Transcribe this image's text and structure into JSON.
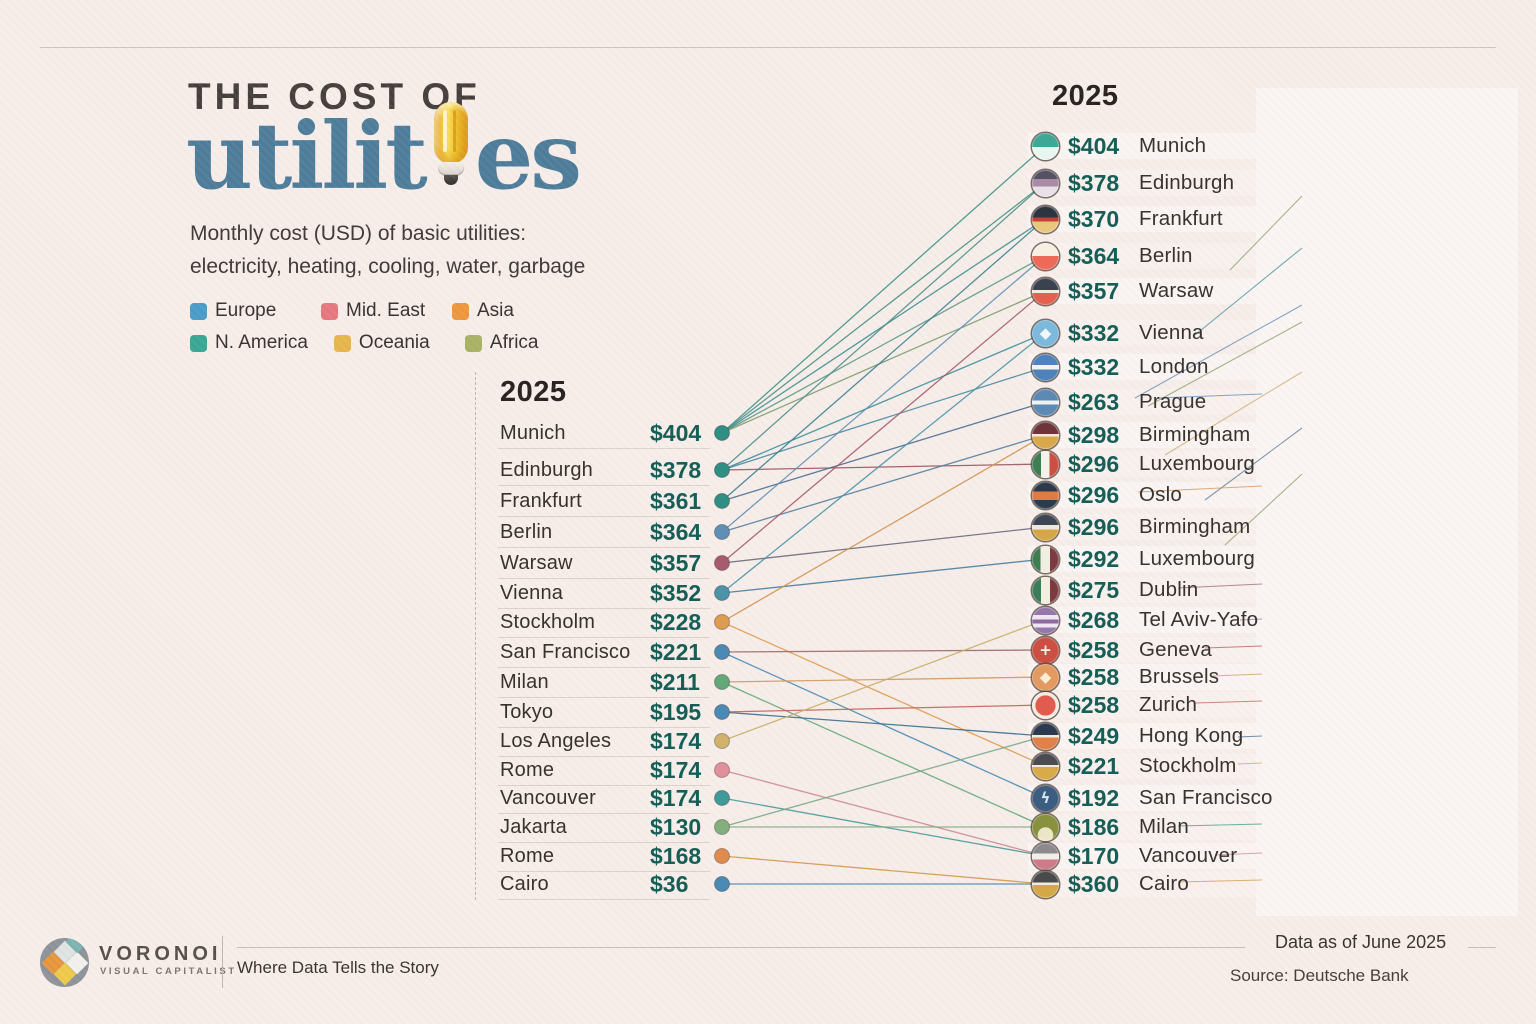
{
  "title": {
    "kicker": "THE COST OF",
    "word_before_bulb": "utilit",
    "word_after_bulb": "es"
  },
  "subtitle_line1": "Monthly cost (USD) of basic utilities:",
  "subtitle_line2": "electricity, heating, cooling, water, garbage",
  "legend": [
    {
      "label": "Europe",
      "color": "#4a9cc9"
    },
    {
      "label": "Mid. East",
      "color": "#e7787f"
    },
    {
      "label": "Asia",
      "color": "#f0973f"
    },
    {
      "label": "N. America",
      "color": "#3aa795"
    },
    {
      "label": "Oceania",
      "color": "#e9b64d"
    },
    {
      "label": "Africa",
      "color": "#a9b264"
    }
  ],
  "left_column": {
    "header": "2025",
    "rows": [
      {
        "city": "Munich",
        "value": "$404",
        "dot_color": "#2f8f85"
      },
      {
        "city": "Edinburgh",
        "value": "$378",
        "dot_color": "#2f8f85"
      },
      {
        "city": "Frankfurt",
        "value": "$361",
        "dot_color": "#2f8f85"
      },
      {
        "city": "Berlin",
        "value": "$364",
        "dot_color": "#5f8fb4"
      },
      {
        "city": "Warsaw",
        "value": "$357",
        "dot_color": "#a65b6e"
      },
      {
        "city": "Vienna",
        "value": "$352",
        "dot_color": "#4a93a8"
      },
      {
        "city": "Stockholm",
        "value": "$228",
        "dot_color": "#de9b52"
      },
      {
        "city": "San Francisco",
        "value": "$221",
        "dot_color": "#4a8ab4"
      },
      {
        "city": "Milan",
        "value": "$211",
        "dot_color": "#62a878"
      },
      {
        "city": "Tokyo",
        "value": "$195",
        "dot_color": "#4a8ab4"
      },
      {
        "city": "Los Angeles",
        "value": "$174",
        "dot_color": "#d2b26a"
      },
      {
        "city": "Rome",
        "value": "$174",
        "dot_color": "#e18f9a"
      },
      {
        "city": "Vancouver",
        "value": "$174",
        "dot_color": "#3f9a9a"
      },
      {
        "city": "Jakarta",
        "value": "$130",
        "dot_color": "#83ae7e"
      },
      {
        "city": "Rome",
        "value": "$168",
        "dot_color": "#de8b4e"
      },
      {
        "city": "Cairo",
        "value": "$36",
        "dot_color": "#4a8ab4"
      }
    ]
  },
  "right_column": {
    "header": "2025",
    "rows": [
      {
        "value": "$404",
        "city": "Munich",
        "flag": {
          "type": "h",
          "stops": [
            [
              "#3fa796",
              52
            ],
            [
              "#e9f6ef",
              100
            ]
          ]
        }
      },
      {
        "value": "$378",
        "city": "Edinburgh",
        "flag": {
          "type": "h",
          "stops": [
            [
              "#555064",
              34
            ],
            [
              "#a98ba5",
              62
            ],
            [
              "#e9e0e8",
              100
            ]
          ]
        }
      },
      {
        "value": "$370",
        "city": "Frankfurt",
        "flag": {
          "type": "h",
          "stops": [
            [
              "#2c3440",
              42
            ],
            [
              "#c44038",
              58
            ],
            [
              "#e9c87d",
              100
            ]
          ]
        }
      },
      {
        "value": "$364",
        "city": "Berlin",
        "flag": {
          "type": "h",
          "stops": [
            [
              "#f6efe2",
              48
            ],
            [
              "#ee6a58",
              100
            ]
          ]
        }
      },
      {
        "value": "$357",
        "city": "Warsaw",
        "flag": {
          "type": "h",
          "stops": [
            [
              "#3a414f",
              44
            ],
            [
              "#f1ece3",
              56
            ],
            [
              "#e4604e",
              100
            ]
          ]
        }
      },
      {
        "value": "$332",
        "city": "Vienna",
        "flag": {
          "type": "emblem",
          "bg": "#7cb9dd",
          "char": "◆",
          "char_color": "#f2f7fa"
        }
      },
      {
        "value": "$332",
        "city": "London",
        "flag": {
          "type": "h",
          "stops": [
            [
              "#4d82ba",
              40
            ],
            [
              "#f2f3ee",
              58
            ],
            [
              "#4d82ba",
              100
            ]
          ]
        }
      },
      {
        "value": "$263",
        "city": "Prague",
        "flag": {
          "type": "h",
          "stops": [
            [
              "#5d89b5",
              42
            ],
            [
              "#eef2f3",
              58
            ],
            [
              "#5d89b5",
              100
            ]
          ]
        }
      },
      {
        "value": "$298",
        "city": "Birmingham",
        "flag": {
          "type": "h",
          "stops": [
            [
              "#6e3439",
              44
            ],
            [
              "#f0e9d9",
              54
            ],
            [
              "#d9a84d",
              100
            ]
          ]
        }
      },
      {
        "value": "$296",
        "city": "Luxembourg",
        "flag": {
          "type": "v",
          "stops": [
            [
              "#3f7d52",
              34
            ],
            [
              "#f4f2ea",
              64
            ],
            [
              "#cc4f43",
              100
            ]
          ]
        }
      },
      {
        "value": "$296",
        "city": "Oslo",
        "flag": {
          "type": "h",
          "stops": [
            [
              "#2c3a4e",
              36
            ],
            [
              "#e07b41",
              66
            ],
            [
              "#2c3a4e",
              100
            ]
          ]
        }
      },
      {
        "value": "$296",
        "city": "Birmingham",
        "flag": {
          "type": "h",
          "stops": [
            [
              "#3e4654",
              40
            ],
            [
              "#efe9da",
              58
            ],
            [
              "#d5a647",
              100
            ]
          ]
        }
      },
      {
        "value": "$292",
        "city": "Luxembourg",
        "flag": {
          "type": "v",
          "stops": [
            [
              "#3f7d52",
              32
            ],
            [
              "#f2eee1",
              66
            ],
            [
              "#7d3b40",
              100
            ]
          ]
        }
      },
      {
        "value": "$275",
        "city": "Dublin",
        "flag": {
          "type": "v",
          "stops": [
            [
              "#3b7d59",
              34
            ],
            [
              "#f2eee1",
              66
            ],
            [
              "#7d3b40",
              100
            ]
          ]
        }
      },
      {
        "value": "$268",
        "city": "Tel Aviv-Yafo",
        "flag": {
          "type": "h",
          "stops": [
            [
              "#9678a8",
              30
            ],
            [
              "#eee6f2",
              46
            ],
            [
              "#8d6a9e",
              62
            ],
            [
              "#eee6f2",
              76
            ],
            [
              "#9678a8",
              100
            ]
          ]
        }
      },
      {
        "value": "$258",
        "city": "Geneva",
        "flag": {
          "type": "emblem",
          "bg": "#cd4f43",
          "char": "+",
          "char_color": "#f6f1e8"
        }
      },
      {
        "value": "$258",
        "city": "Brussels",
        "flag": {
          "type": "emblem",
          "bg": "#e39a60",
          "char": "◆",
          "char_color": "#f8edd9"
        }
      },
      {
        "value": "$258",
        "city": "Zurich",
        "flag": {
          "type": "radial",
          "at": "50% 50%",
          "inner": "#e25b4f",
          "inner_stop": 52,
          "outer": "#f2ece0"
        }
      },
      {
        "value": "$249",
        "city": "Hong Kong",
        "flag": {
          "type": "h",
          "stops": [
            [
              "#2c3a50",
              44
            ],
            [
              "#f0ece1",
              54
            ],
            [
              "#e0814a",
              100
            ]
          ]
        }
      },
      {
        "value": "$221",
        "city": "Stockholm",
        "flag": {
          "type": "h",
          "stops": [
            [
              "#4b4b54",
              44
            ],
            [
              "#f0ecdc",
              52
            ],
            [
              "#d9aa48",
              100
            ]
          ]
        }
      },
      {
        "value": "$192",
        "city": "San Francisco",
        "flag": {
          "type": "emblem",
          "bg": "#3c5c80",
          "char": "ϟ",
          "char_color": "#cfe4f0"
        }
      },
      {
        "value": "$186",
        "city": "Milan",
        "flag": {
          "type": "radial",
          "at": "50% 78%",
          "inner": "#ece6c8",
          "inner_stop": 30,
          "outer": "#87913e"
        }
      },
      {
        "value": "$170",
        "city": "Vancouver",
        "flag": {
          "type": "h",
          "stops": [
            [
              "#8b8b8f",
              38
            ],
            [
              "#f2efe8",
              62
            ],
            [
              "#cd7b88",
              100
            ]
          ]
        }
      },
      {
        "value": "$360",
        "city": "Cairo",
        "flag": {
          "type": "h",
          "stops": [
            [
              "#4a4a4c",
              42
            ],
            [
              "#f0ecdb",
              52
            ],
            [
              "#d5a847",
              100
            ]
          ]
        }
      }
    ]
  },
  "links": [
    {
      "l": 0,
      "r": 0,
      "color": "#3f9488"
    },
    {
      "l": 0,
      "r": 1,
      "color": "#4a9184"
    },
    {
      "l": 0,
      "r": 2,
      "color": "#3d8f91"
    },
    {
      "l": 0,
      "r": 3,
      "color": "#5e9a86"
    },
    {
      "l": 0,
      "r": 4,
      "color": "#7f9b6f"
    },
    {
      "l": 1,
      "r": 1,
      "color": "#52908b"
    },
    {
      "l": 1,
      "r": 5,
      "color": "#3f8f9b"
    },
    {
      "l": 1,
      "r": 6,
      "color": "#4a8aa1"
    },
    {
      "l": 1,
      "r": 9,
      "color": "#9a5561"
    },
    {
      "l": 2,
      "r": 2,
      "color": "#3d7f90"
    },
    {
      "l": 2,
      "r": 7,
      "color": "#4a6f93"
    },
    {
      "l": 3,
      "r": 3,
      "color": "#5f8fb4"
    },
    {
      "l": 3,
      "r": 8,
      "color": "#56809f"
    },
    {
      "l": 4,
      "r": 4,
      "color": "#a65b6e"
    },
    {
      "l": 4,
      "r": 11,
      "color": "#6a6a7c"
    },
    {
      "l": 5,
      "r": 5,
      "color": "#4a93a8"
    },
    {
      "l": 5,
      "r": 12,
      "color": "#4a7e9d"
    },
    {
      "l": 6,
      "r": 19,
      "color": "#de9b52"
    },
    {
      "l": 6,
      "r": 8,
      "color": "#d09350"
    },
    {
      "l": 7,
      "r": 20,
      "color": "#4a8ab4"
    },
    {
      "l": 7,
      "r": 15,
      "color": "#9a6a68"
    },
    {
      "l": 8,
      "r": 21,
      "color": "#62a878"
    },
    {
      "l": 8,
      "r": 16,
      "color": "#cf9a62"
    },
    {
      "l": 9,
      "r": 18,
      "color": "#3d6d8d"
    },
    {
      "l": 9,
      "r": 17,
      "color": "#c06456"
    },
    {
      "l": 10,
      "r": 14,
      "color": "#c8ae6a"
    },
    {
      "l": 11,
      "r": 22,
      "color": "#cc8a94"
    },
    {
      "l": 12,
      "r": 22,
      "color": "#4a9a97"
    },
    {
      "l": 13,
      "r": 21,
      "color": "#83ae7e"
    },
    {
      "l": 13,
      "r": 18,
      "color": "#7aa88a"
    },
    {
      "l": 14,
      "r": 23,
      "color": "#d3984a"
    },
    {
      "l": 15,
      "r": 23,
      "color": "#4a8ab4"
    }
  ],
  "footer": {
    "brand": "VORONOI",
    "brand_sub": "VISUAL CAPITALIST",
    "tagline": "Where Data Tells the Story",
    "date_note": "Data as of June 2025",
    "source": "Source: Deutsche Bank"
  },
  "chart_data": {
    "type": "slopegraph",
    "title": "The Cost of Utilities",
    "subtitle": "Monthly cost (USD) of basic utilities: electricity, heating, cooling, water, garbage",
    "legend_regions": [
      "Europe",
      "Mid. East",
      "Asia",
      "N. America",
      "Oceania",
      "Africa"
    ],
    "left": {
      "year": "2025",
      "cities": [
        "Munich",
        "Edinburgh",
        "Frankfurt",
        "Berlin",
        "Warsaw",
        "Vienna",
        "Stockholm",
        "San Francisco",
        "Milan",
        "Tokyo",
        "Los Angeles",
        "Rome",
        "Vancouver",
        "Jakarta",
        "Rome",
        "Cairo"
      ],
      "values": [
        404,
        378,
        361,
        364,
        357,
        352,
        228,
        221,
        211,
        195,
        174,
        174,
        174,
        130,
        168,
        36
      ]
    },
    "right": {
      "year": "2025",
      "cities": [
        "Munich",
        "Edinburgh",
        "Frankfurt",
        "Berlin",
        "Warsaw",
        "Vienna",
        "London",
        "Prague",
        "Birmingham",
        "Luxembourg",
        "Oslo",
        "Birmingham",
        "Luxembourg",
        "Dublin",
        "Tel Aviv-Yafo",
        "Geneva",
        "Brussels",
        "Zurich",
        "Hong Kong",
        "Stockholm",
        "San Francisco",
        "Milan",
        "Vancouver",
        "Cairo"
      ],
      "values": [
        404,
        378,
        370,
        364,
        357,
        332,
        332,
        263,
        298,
        296,
        296,
        296,
        292,
        275,
        268,
        258,
        258,
        258,
        249,
        221,
        192,
        186,
        170,
        360
      ]
    },
    "source": "Deutsche Bank",
    "as_of": "June 2025"
  }
}
